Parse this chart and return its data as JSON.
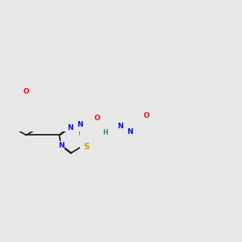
{
  "bg_color": "#e8e8e8",
  "bond_color": "#222222",
  "bond_width": 1.3,
  "dbo": 0.018,
  "atom_colors": {
    "N": "#1010ee",
    "O": "#ee1010",
    "S": "#bbaa00",
    "H": "#2a8a8a"
  },
  "fs": 6.5,
  "fig_w": 3.0,
  "fig_h": 3.0,
  "dpi": 100,
  "xlim": [
    0.3,
    3.0
  ],
  "ylim": [
    0.15,
    2.85
  ]
}
